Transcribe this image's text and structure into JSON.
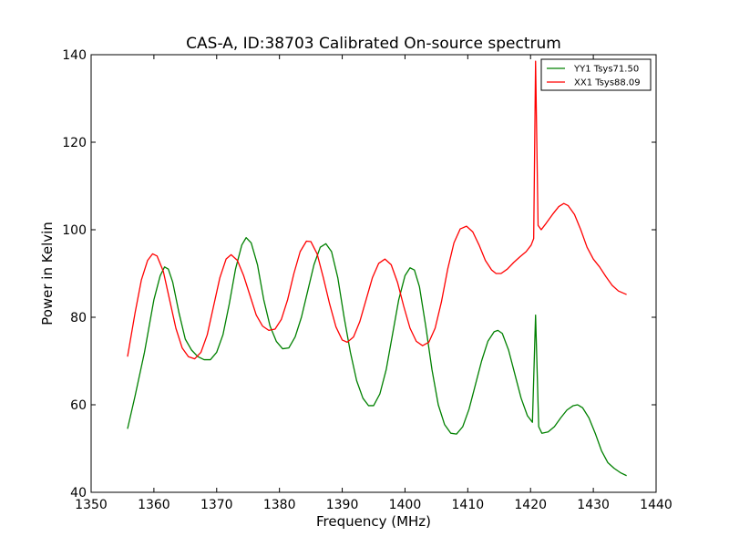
{
  "chart_data": {
    "type": "line",
    "title": "CAS-A, ID:38703 Calibrated On-source spectrum",
    "xlabel": "Frequency (MHz)",
    "ylabel": "Power in Kelvin",
    "xlim": [
      1350,
      1440
    ],
    "ylim": [
      40,
      140
    ],
    "xticks": [
      "1350",
      "1360",
      "1370",
      "1380",
      "1390",
      "1400",
      "1410",
      "1420",
      "1430",
      "1440"
    ],
    "yticks": [
      "40",
      "60",
      "80",
      "100",
      "120",
      "140"
    ],
    "grid": false,
    "legend_position": "top-right",
    "series": [
      {
        "name": "YY1 Tsys71.50",
        "color": "#008000",
        "points": [
          [
            1355.8,
            54.5
          ],
          [
            1357.0,
            62.0
          ],
          [
            1358.5,
            72.0
          ],
          [
            1360.0,
            84.0
          ],
          [
            1361.0,
            89.5
          ],
          [
            1361.7,
            91.5
          ],
          [
            1362.3,
            91.0
          ],
          [
            1363.0,
            88.0
          ],
          [
            1364.0,
            81.0
          ],
          [
            1365.0,
            75.0
          ],
          [
            1366.0,
            72.5
          ],
          [
            1367.0,
            71.0
          ],
          [
            1368.0,
            70.3
          ],
          [
            1369.0,
            70.3
          ],
          [
            1370.0,
            72.0
          ],
          [
            1371.0,
            76.0
          ],
          [
            1372.0,
            83.0
          ],
          [
            1373.0,
            91.0
          ],
          [
            1374.0,
            96.5
          ],
          [
            1374.7,
            98.2
          ],
          [
            1375.5,
            97.0
          ],
          [
            1376.5,
            92.0
          ],
          [
            1377.5,
            84.0
          ],
          [
            1378.5,
            78.0
          ],
          [
            1379.5,
            74.5
          ],
          [
            1380.5,
            72.8
          ],
          [
            1381.5,
            73.0
          ],
          [
            1382.5,
            75.5
          ],
          [
            1383.5,
            80.0
          ],
          [
            1384.5,
            86.0
          ],
          [
            1385.5,
            92.0
          ],
          [
            1386.5,
            96.0
          ],
          [
            1387.4,
            96.8
          ],
          [
            1388.3,
            95.0
          ],
          [
            1389.3,
            89.0
          ],
          [
            1390.3,
            80.0
          ],
          [
            1391.3,
            72.0
          ],
          [
            1392.3,
            65.5
          ],
          [
            1393.3,
            61.5
          ],
          [
            1394.2,
            59.8
          ],
          [
            1395.0,
            59.8
          ],
          [
            1396.0,
            62.5
          ],
          [
            1397.0,
            68.0
          ],
          [
            1398.0,
            76.0
          ],
          [
            1399.0,
            84.0
          ],
          [
            1400.0,
            89.5
          ],
          [
            1400.8,
            91.3
          ],
          [
            1401.5,
            90.8
          ],
          [
            1402.3,
            87.0
          ],
          [
            1403.3,
            78.0
          ],
          [
            1404.3,
            68.0
          ],
          [
            1405.3,
            60.0
          ],
          [
            1406.3,
            55.5
          ],
          [
            1407.3,
            53.5
          ],
          [
            1408.2,
            53.3
          ],
          [
            1409.2,
            55.0
          ],
          [
            1410.2,
            59.0
          ],
          [
            1411.2,
            64.5
          ],
          [
            1412.2,
            70.0
          ],
          [
            1413.2,
            74.5
          ],
          [
            1414.2,
            76.7
          ],
          [
            1414.8,
            77.0
          ],
          [
            1415.5,
            76.3
          ],
          [
            1416.5,
            72.5
          ],
          [
            1417.5,
            67.0
          ],
          [
            1418.5,
            61.5
          ],
          [
            1419.5,
            57.5
          ],
          [
            1420.3,
            56.0
          ],
          [
            1420.8,
            80.5
          ],
          [
            1421.3,
            55.0
          ],
          [
            1421.8,
            53.5
          ],
          [
            1422.8,
            53.8
          ],
          [
            1423.8,
            55.0
          ],
          [
            1424.8,
            57.0
          ],
          [
            1425.8,
            58.8
          ],
          [
            1426.8,
            59.8
          ],
          [
            1427.5,
            60.0
          ],
          [
            1428.3,
            59.3
          ],
          [
            1429.3,
            57.0
          ],
          [
            1430.3,
            53.5
          ],
          [
            1431.3,
            49.5
          ],
          [
            1432.3,
            46.8
          ],
          [
            1433.3,
            45.5
          ],
          [
            1434.3,
            44.5
          ],
          [
            1435.3,
            43.8
          ]
        ]
      },
      {
        "name": "XX1 Tsys88.09",
        "color": "#ff0000",
        "points": [
          [
            1355.8,
            71.0
          ],
          [
            1357.0,
            81.0
          ],
          [
            1358.0,
            88.5
          ],
          [
            1359.0,
            93.0
          ],
          [
            1359.8,
            94.5
          ],
          [
            1360.5,
            94.0
          ],
          [
            1361.5,
            90.5
          ],
          [
            1362.5,
            84.0
          ],
          [
            1363.5,
            77.5
          ],
          [
            1364.5,
            73.0
          ],
          [
            1365.5,
            71.0
          ],
          [
            1366.5,
            70.5
          ],
          [
            1367.5,
            72.0
          ],
          [
            1368.5,
            76.0
          ],
          [
            1369.5,
            82.5
          ],
          [
            1370.5,
            89.0
          ],
          [
            1371.5,
            93.3
          ],
          [
            1372.3,
            94.3
          ],
          [
            1373.3,
            93.0
          ],
          [
            1374.3,
            89.5
          ],
          [
            1375.3,
            85.0
          ],
          [
            1376.3,
            80.5
          ],
          [
            1377.3,
            78.0
          ],
          [
            1378.3,
            77.0
          ],
          [
            1379.3,
            77.3
          ],
          [
            1380.3,
            79.5
          ],
          [
            1381.3,
            84.0
          ],
          [
            1382.3,
            90.0
          ],
          [
            1383.3,
            95.0
          ],
          [
            1384.3,
            97.4
          ],
          [
            1385.0,
            97.3
          ],
          [
            1386.0,
            94.5
          ],
          [
            1387.0,
            89.0
          ],
          [
            1388.0,
            83.0
          ],
          [
            1389.0,
            77.8
          ],
          [
            1390.0,
            74.8
          ],
          [
            1390.8,
            74.3
          ],
          [
            1391.8,
            75.5
          ],
          [
            1392.8,
            79.0
          ],
          [
            1393.8,
            84.0
          ],
          [
            1394.8,
            89.0
          ],
          [
            1395.8,
            92.3
          ],
          [
            1396.8,
            93.3
          ],
          [
            1397.8,
            92.0
          ],
          [
            1398.8,
            88.0
          ],
          [
            1399.8,
            82.5
          ],
          [
            1400.8,
            77.5
          ],
          [
            1401.8,
            74.5
          ],
          [
            1402.8,
            73.5
          ],
          [
            1403.8,
            74.3
          ],
          [
            1404.8,
            77.5
          ],
          [
            1405.8,
            83.5
          ],
          [
            1406.8,
            91.0
          ],
          [
            1407.8,
            97.0
          ],
          [
            1408.8,
            100.2
          ],
          [
            1409.8,
            100.8
          ],
          [
            1410.8,
            99.5
          ],
          [
            1411.8,
            96.5
          ],
          [
            1412.8,
            93.0
          ],
          [
            1413.8,
            90.8
          ],
          [
            1414.5,
            90.0
          ],
          [
            1415.3,
            90.0
          ],
          [
            1416.3,
            91.0
          ],
          [
            1417.3,
            92.5
          ],
          [
            1418.3,
            93.8
          ],
          [
            1419.3,
            95.0
          ],
          [
            1420.1,
            96.5
          ],
          [
            1420.5,
            98.0
          ],
          [
            1420.8,
            138.5
          ],
          [
            1421.2,
            101.0
          ],
          [
            1421.7,
            100.0
          ],
          [
            1422.5,
            101.5
          ],
          [
            1423.5,
            103.5
          ],
          [
            1424.5,
            105.3
          ],
          [
            1425.3,
            106.0
          ],
          [
            1426.0,
            105.5
          ],
          [
            1427.0,
            103.5
          ],
          [
            1428.0,
            100.0
          ],
          [
            1429.0,
            96.0
          ],
          [
            1430.0,
            93.3
          ],
          [
            1431.0,
            91.5
          ],
          [
            1432.0,
            89.3
          ],
          [
            1433.0,
            87.3
          ],
          [
            1434.0,
            86.0
          ],
          [
            1435.3,
            85.2
          ]
        ]
      }
    ]
  }
}
